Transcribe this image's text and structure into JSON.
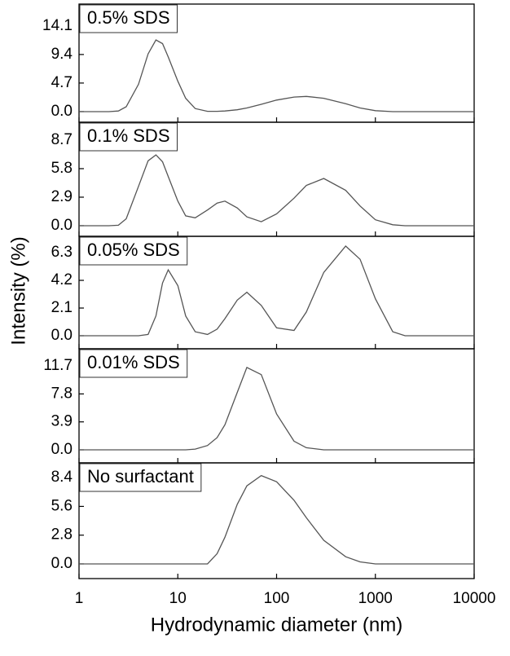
{
  "chart_data": [
    {
      "type": "line",
      "annotation": "0.5% SDS",
      "xscale": "log",
      "xlim": [
        1,
        10000
      ],
      "xticks": [
        1,
        10,
        100,
        1000,
        10000
      ],
      "ylim": [
        -1.75,
        17.7
      ],
      "yticks": [
        {
          "value": 0,
          "label": "0.0"
        },
        4.7,
        9.4,
        14.1
      ],
      "color": "#555555",
      "x": [
        1,
        2,
        2.5,
        3,
        4,
        5,
        6,
        7,
        8,
        10,
        12,
        15,
        20,
        25,
        30,
        40,
        50,
        70,
        100,
        150,
        200,
        300,
        500,
        700,
        1000,
        1500,
        2000,
        10000
      ],
      "values": [
        0,
        0,
        0.1,
        0.8,
        4.5,
        9.5,
        11.8,
        11.2,
        9,
        5,
        2.2,
        0.5,
        0.05,
        0.05,
        0.1,
        0.3,
        0.6,
        1.2,
        1.9,
        2.4,
        2.5,
        2.2,
        1.3,
        0.6,
        0.15,
        0,
        0,
        0
      ]
    },
    {
      "type": "line",
      "annotation": "0.1% SDS",
      "xscale": "log",
      "xlim": [
        1,
        10000
      ],
      "xticks": [
        1,
        10,
        100,
        1000,
        10000
      ],
      "ylim": [
        -1.08,
        10.52
      ],
      "yticks": [
        {
          "value": 0,
          "label": "0.0"
        },
        2.9,
        5.8,
        8.7
      ],
      "color": "#555555",
      "x": [
        1,
        2,
        2.5,
        3,
        4,
        5,
        6,
        7,
        8,
        10,
        12,
        15,
        20,
        25,
        30,
        40,
        50,
        70,
        100,
        150,
        200,
        300,
        500,
        700,
        1000,
        1500,
        2000,
        10000
      ],
      "values": [
        0,
        0,
        0.05,
        0.7,
        4,
        6.6,
        7.2,
        6.5,
        5,
        2.5,
        1.0,
        0.8,
        1.6,
        2.3,
        2.5,
        1.8,
        0.9,
        0.4,
        1.2,
        2.8,
        4.1,
        4.8,
        3.6,
        2.0,
        0.6,
        0.1,
        0,
        0
      ]
    },
    {
      "type": "line",
      "annotation": "0.05% SDS",
      "ylabel": "Intensity (%)",
      "xscale": "log",
      "xlim": [
        1,
        10000
      ],
      "xticks": [
        1,
        10,
        100,
        1000,
        10000
      ],
      "ylim": [
        -0.99,
        7.54
      ],
      "yticks": [
        {
          "value": 0,
          "label": "0.0"
        },
        2.1,
        4.2,
        6.3
      ],
      "color": "#555555",
      "x": [
        1,
        2,
        2.5,
        3,
        4,
        5,
        6,
        7,
        8,
        10,
        12,
        15,
        20,
        25,
        30,
        40,
        50,
        70,
        100,
        150,
        200,
        300,
        500,
        700,
        1000,
        1500,
        2000,
        10000
      ],
      "values": [
        0,
        0,
        0,
        0,
        0,
        0.1,
        1.5,
        4,
        5,
        3.8,
        1.5,
        0.3,
        0.1,
        0.5,
        1.3,
        2.7,
        3.3,
        2.3,
        0.6,
        0.4,
        1.8,
        4.8,
        6.8,
        5.8,
        2.8,
        0.3,
        0,
        0
      ]
    },
    {
      "type": "line",
      "annotation": "0.01% SDS",
      "xscale": "log",
      "xlim": [
        1,
        10000
      ],
      "xticks": [
        1,
        10,
        100,
        1000,
        10000
      ],
      "ylim": [
        -1.82,
        14.1
      ],
      "yticks": [
        {
          "value": 0,
          "label": "0.0"
        },
        3.9,
        7.8,
        11.7
      ],
      "color": "#555555",
      "x": [
        1,
        2,
        2.5,
        3,
        4,
        5,
        6,
        7,
        8,
        10,
        12,
        15,
        20,
        25,
        30,
        40,
        50,
        70,
        100,
        150,
        200,
        300,
        500,
        700,
        1000,
        1500,
        2000,
        10000
      ],
      "values": [
        0,
        0,
        0,
        0,
        0,
        0,
        0,
        0,
        0,
        0,
        0,
        0.1,
        0.6,
        1.7,
        3.5,
        8,
        11.5,
        10.5,
        5,
        1.2,
        0.3,
        0,
        0,
        0,
        0,
        0,
        0,
        0
      ]
    },
    {
      "type": "line",
      "annotation": "No surfactant",
      "xlabel": "Hydrodynamic diameter (nm)",
      "xscale": "log",
      "xlim": [
        1,
        10000
      ],
      "xticks": [
        1,
        10,
        100,
        1000,
        10000
      ],
      "ylim": [
        -1.43,
        9.84
      ],
      "yticks": [
        {
          "value": 0,
          "label": "0.0"
        },
        2.8,
        5.6,
        8.4
      ],
      "color": "#555555",
      "x": [
        1,
        2,
        2.5,
        3,
        4,
        5,
        6,
        7,
        8,
        10,
        12,
        15,
        20,
        25,
        30,
        40,
        50,
        70,
        100,
        150,
        200,
        300,
        500,
        700,
        1000,
        1500,
        2000,
        10000
      ],
      "values": [
        0,
        0,
        0,
        0,
        0,
        0,
        0,
        0,
        0,
        0,
        0,
        0,
        0,
        1,
        2.6,
        5.8,
        7.6,
        8.6,
        8,
        6.2,
        4.5,
        2.3,
        0.7,
        0.2,
        0,
        0,
        0,
        0
      ]
    }
  ]
}
